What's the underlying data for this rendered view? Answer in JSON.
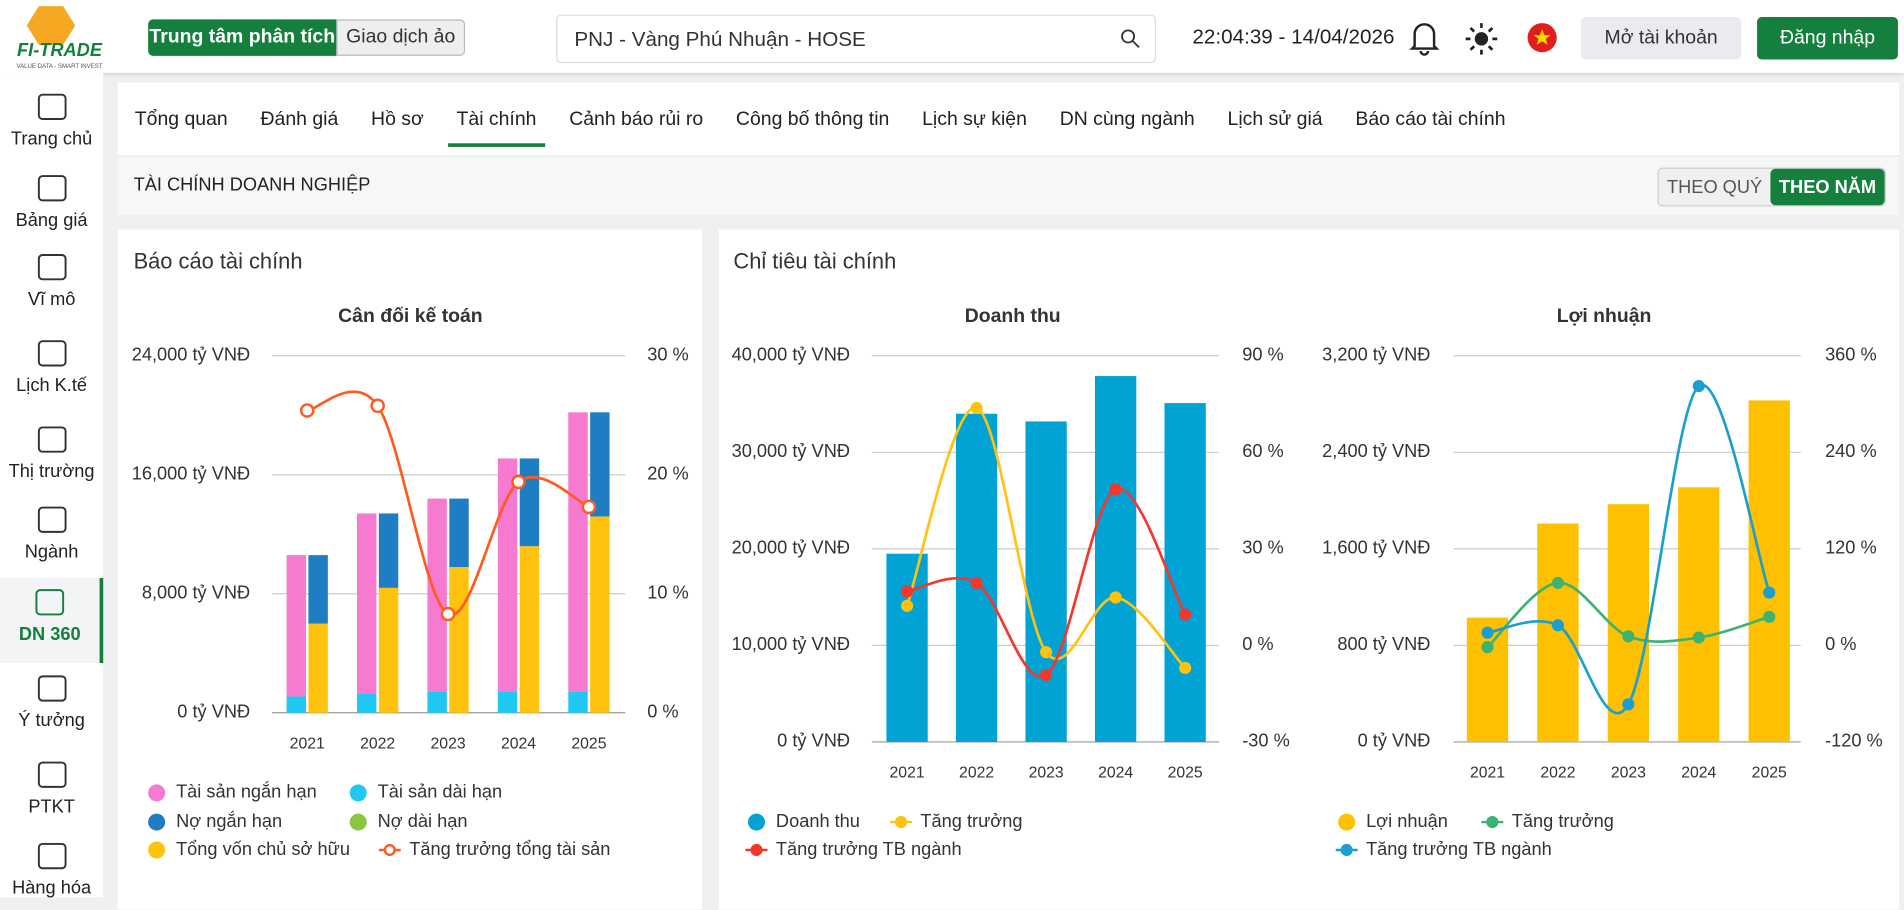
{
  "header": {
    "logo": "FI-TRADE",
    "slogan": "VALUE DATA - SMART INVEST",
    "modes": [
      "Trung tâm phân tích",
      "Giao dịch ảo"
    ],
    "search": "PNJ - Vàng Phú Nhuận - HOSE",
    "time": "22:04:39 - 14/04/2026",
    "open_account": "Mở tài khoản",
    "login": "Đăng nhập"
  },
  "sidebar": [
    "Trang chủ",
    "Bảng giá",
    "Vĩ mô",
    "Lịch K.tế",
    "Thị trường",
    "Ngành",
    "DN 360",
    "Ý tưởng",
    "PTKT",
    "Hàng hóa"
  ],
  "tabs": [
    "Tổng quan",
    "Đánh giá",
    "Hồ sơ",
    "Tài chính",
    "Cảnh báo rủi ro",
    "Công bố thông tin",
    "Lịch sự kiện",
    "DN cùng ngành",
    "Lịch sử giá",
    "Báo cáo tài chính"
  ],
  "section": {
    "title": "TÀI CHÍNH DOANH NGHIỆP",
    "periods": [
      "THEO QUÝ",
      "THEO NĂM"
    ]
  },
  "panels": [
    "Báo cáo tài chính",
    "Chỉ tiêu tài chính"
  ],
  "chart_data": [
    {
      "type": "bar",
      "title": "Cân đối kế toán",
      "categories": [
        "2021",
        "2022",
        "2023",
        "2024",
        "2025"
      ],
      "grid": true,
      "ylim": [
        0,
        24000
      ],
      "yticks": [
        {
          "value": 0,
          "label": "0 tỷ VNĐ"
        },
        {
          "value": 8000,
          "label": "8,000 tỷ VNĐ"
        },
        {
          "value": 16000,
          "label": "16,000 tỷ VNĐ"
        },
        {
          "value": 24000,
          "label": "24,000 tỷ VNĐ"
        }
      ],
      "y2lim": [
        0,
        30
      ],
      "y2ticks": [
        {
          "value": 0,
          "label": "0 %"
        },
        {
          "value": 10,
          "label": "10 %"
        },
        {
          "value": 20,
          "label": "20 %"
        },
        {
          "value": 30,
          "label": "30 %"
        }
      ],
      "series": [
        {
          "name": "Tài sản ngắn hạn",
          "color": "#f57ad0",
          "stack": 0,
          "values": [
            9500,
            12100,
            13000,
            15700,
            18800
          ]
        },
        {
          "name": "Tài sản dài hạn",
          "color": "#1ec8f2",
          "stack": 0,
          "values": [
            1100,
            1300,
            1400,
            1400,
            1400
          ]
        },
        {
          "name": "Nợ ngắn hạn",
          "color": "#1f7dc4",
          "stack": 1,
          "values": [
            4600,
            5000,
            4600,
            5900,
            7000
          ]
        },
        {
          "name": "Nợ dài hạn",
          "color": "#8cc63f",
          "stack": 1,
          "values": [
            0,
            0,
            0,
            0,
            0
          ]
        },
        {
          "name": "Tổng vốn chủ sở hữu",
          "color": "#ffc20e",
          "stack": 1,
          "values": [
            6000,
            8400,
            9800,
            11200,
            13200
          ]
        },
        {
          "name": "Tăng trưởng tổng tài sản",
          "color": "#ff5a1f",
          "type": "line",
          "axis": "y2",
          "marker": "open",
          "values": [
            25.4,
            25.8,
            8.3,
            19.4,
            17.3
          ]
        }
      ]
    },
    {
      "type": "bar",
      "title": "Doanh thu",
      "categories": [
        "2021",
        "2022",
        "2023",
        "2024",
        "2025"
      ],
      "grid": true,
      "ylim": [
        0,
        40000
      ],
      "yticks": [
        {
          "value": 0,
          "label": "0 tỷ VNĐ"
        },
        {
          "value": 10000,
          "label": "10,000 tỷ VNĐ"
        },
        {
          "value": 20000,
          "label": "20,000 tỷ VNĐ"
        },
        {
          "value": 30000,
          "label": "30,000 tỷ VNĐ"
        },
        {
          "value": 40000,
          "label": "40,000 tỷ VNĐ"
        }
      ],
      "y2lim": [
        -30,
        90
      ],
      "y2ticks": [
        {
          "value": -30,
          "label": "-30 %"
        },
        {
          "value": 0,
          "label": "0 %"
        },
        {
          "value": 30,
          "label": "30 %"
        },
        {
          "value": 60,
          "label": "60 %"
        },
        {
          "value": 90,
          "label": "90 %"
        }
      ],
      "series": [
        {
          "name": "Doanh thu",
          "color": "#00a3d4",
          "values": [
            19500,
            34000,
            33200,
            37900,
            35100
          ]
        },
        {
          "name": "Tăng trưởng",
          "color": "#ffc20e",
          "type": "line",
          "axis": "y2",
          "marker": "dot",
          "values": [
            12.3,
            73.8,
            -2.1,
            14.9,
            -7.0
          ]
        },
        {
          "name": "Tăng trưởng TB ngành",
          "color": "#f2382c",
          "type": "line",
          "axis": "y2",
          "marker": "dot",
          "values": [
            16.8,
            19.4,
            -9.2,
            48.5,
            9.6
          ]
        }
      ]
    },
    {
      "type": "bar",
      "title": "Lợi nhuận",
      "categories": [
        "2021",
        "2022",
        "2023",
        "2024",
        "2025"
      ],
      "grid": true,
      "ylim": [
        0,
        3200
      ],
      "yticks": [
        {
          "value": 0,
          "label": "0 tỷ VNĐ"
        },
        {
          "value": 800,
          "label": "800 tỷ VNĐ"
        },
        {
          "value": 1600,
          "label": "1,600 tỷ VNĐ"
        },
        {
          "value": 2400,
          "label": "2,400 tỷ VNĐ"
        },
        {
          "value": 3200,
          "label": "3,200 tỷ VNĐ"
        }
      ],
      "y2lim": [
        -120,
        360
      ],
      "y2ticks": [
        {
          "value": -120,
          "label": "-120 %"
        },
        {
          "value": 0,
          "label": "0 %"
        },
        {
          "value": 120,
          "label": "120 %"
        },
        {
          "value": 240,
          "label": "240 %"
        },
        {
          "value": 360,
          "label": "360 %"
        }
      ],
      "series": [
        {
          "name": "Lợi nhuận",
          "color": "#ffc000",
          "values": [
            1030,
            1810,
            1970,
            2110,
            2830
          ]
        },
        {
          "name": "Tăng trưởng",
          "color": "#3cb371",
          "type": "line",
          "axis": "y2",
          "marker": "dot",
          "values": [
            -2.3,
            77.7,
            11.3,
            9.8,
            35.5
          ]
        },
        {
          "name": "Tăng trưởng TB ngành",
          "color": "#1a9fd0",
          "type": "line",
          "axis": "y2",
          "marker": "dot",
          "values": [
            15.8,
            24.9,
            -73.2,
            322.3,
            65.7
          ]
        }
      ]
    }
  ]
}
